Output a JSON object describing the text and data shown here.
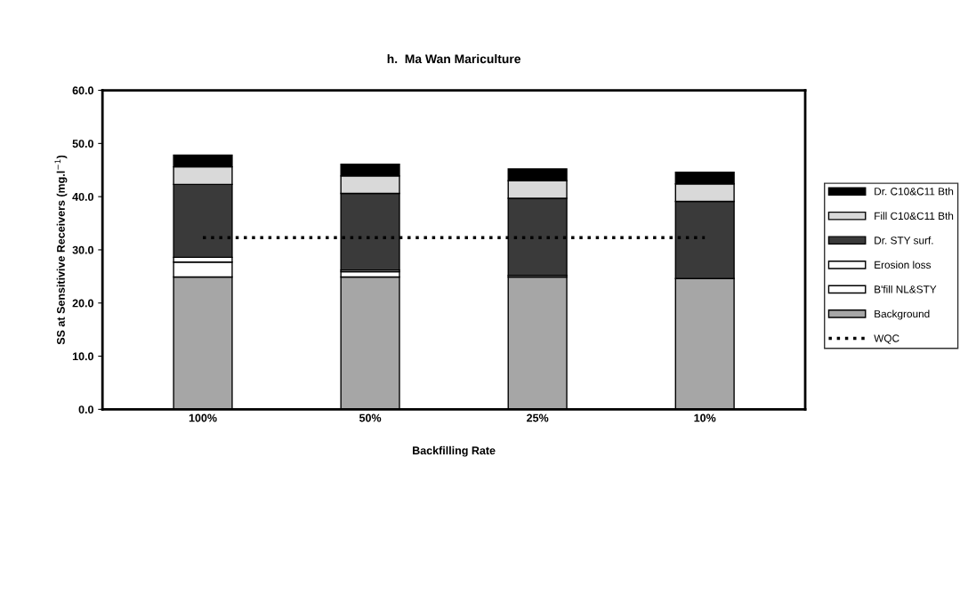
{
  "chart_data": {
    "type": "bar",
    "title": "h.  Ma Wan Mariculture",
    "xlabel": "Backfilling Rate",
    "ylabel": "SS at Sensitivive Receivers (mg.l$^{−1}$)",
    "categories": [
      "100%",
      "50%",
      "25%",
      "10%"
    ],
    "stacked": true,
    "series": [
      {
        "name": "Background",
        "color": "#a6a6a6",
        "values": [
          24.9,
          24.9,
          24.9,
          24.6
        ]
      },
      {
        "name": "B'fill NL&STY",
        "color": "#ffffff",
        "values": [
          2.8,
          1.0,
          0.3,
          0
        ]
      },
      {
        "name": "Erosion loss",
        "color": "#ffffff",
        "values": [
          0.9,
          0.3,
          null,
          0
        ]
      },
      {
        "name": "Dr. STY surf.",
        "color": "#3a3a3a",
        "values": [
          13.7,
          14.4,
          14.5,
          14.5
        ]
      },
      {
        "name": "Fill C10&C11 Bth",
        "color": "#d9d9d9",
        "values": [
          3.3,
          3.3,
          3.3,
          3.3
        ]
      },
      {
        "name": "Dr. C10&C11 Bth",
        "color": "#000000",
        "values": [
          2.2,
          2.2,
          2.2,
          2.2
        ]
      }
    ],
    "ref_lines": [
      {
        "axis": "y",
        "value": 32.3,
        "label": "WQC",
        "color": "#000000",
        "line_style": "dotted"
      }
    ],
    "ylim": [
      0,
      60
    ],
    "yticks": [
      {
        "value": 0,
        "label": "0.0"
      },
      {
        "value": 10,
        "label": "10.0"
      },
      {
        "value": 20,
        "label": "20.0"
      },
      {
        "value": 30,
        "label": "30.0"
      },
      {
        "value": 40,
        "label": "40.0"
      },
      {
        "value": 50,
        "label": "50.0"
      },
      {
        "value": 60,
        "label": "60.0"
      }
    ],
    "legend": "right"
  }
}
